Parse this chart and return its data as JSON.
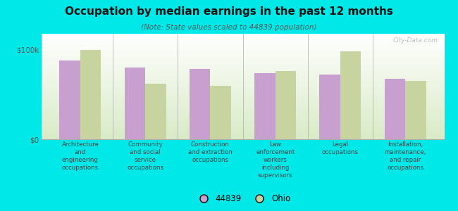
{
  "title": "Occupation by median earnings in the past 12 months",
  "subtitle": "(Note: State values scaled to 44839 population)",
  "categories": [
    "Architecture\nand\nengineering\noccupations",
    "Community\nand social\nservice\noccupations",
    "Construction\nand extraction\noccupations",
    "Law\nenforcement\nworkers\nincluding\nsupervisors",
    "Legal\noccupations",
    "Installation,\nmaintenance,\nand repair\noccupations"
  ],
  "values_44839": [
    88000,
    80000,
    79000,
    74000,
    72000,
    68000
  ],
  "values_ohio": [
    100000,
    62000,
    60000,
    76000,
    98000,
    65000
  ],
  "color_44839": "#c8a0d0",
  "color_ohio": "#c8d4a0",
  "background_outer": "#00e8e8",
  "background_inner_top": "#f0f5e8",
  "background_inner_bottom": "#e0eccc",
  "ylabel_ticks": [
    "$0",
    "$100k"
  ],
  "ytick_vals": [
    0,
    100000
  ],
  "ylim": [
    0,
    118000
  ],
  "legend_label_1": "44839",
  "legend_label_2": "Ohio",
  "watermark": "City-Data.com",
  "bar_width": 0.32
}
